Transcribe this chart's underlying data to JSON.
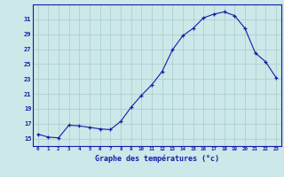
{
  "hours": [
    0,
    1,
    2,
    3,
    4,
    5,
    6,
    7,
    8,
    9,
    10,
    11,
    12,
    13,
    14,
    15,
    16,
    17,
    18,
    19,
    20,
    21,
    22,
    23
  ],
  "temps": [
    15.6,
    15.2,
    15.1,
    16.8,
    16.7,
    16.5,
    16.3,
    16.2,
    17.3,
    19.2,
    20.8,
    22.2,
    24.0,
    26.9,
    28.8,
    29.8,
    31.2,
    31.7,
    32.0,
    31.5,
    29.8,
    26.5,
    25.3,
    23.2
  ],
  "line_color": "#1a1aaa",
  "marker": "+",
  "bg_color": "#cce8e8",
  "grid_color": "#aacaca",
  "xlabel": "Graphe des températures (°c)",
  "ylabel_ticks": [
    15,
    17,
    19,
    21,
    23,
    25,
    27,
    29,
    31
  ],
  "ylim": [
    14.0,
    33.0
  ],
  "xlim": [
    -0.5,
    23.5
  ],
  "axis_color": "#1a1aaa",
  "tick_color": "#1a1aaa",
  "label_color": "#1a1aaa"
}
